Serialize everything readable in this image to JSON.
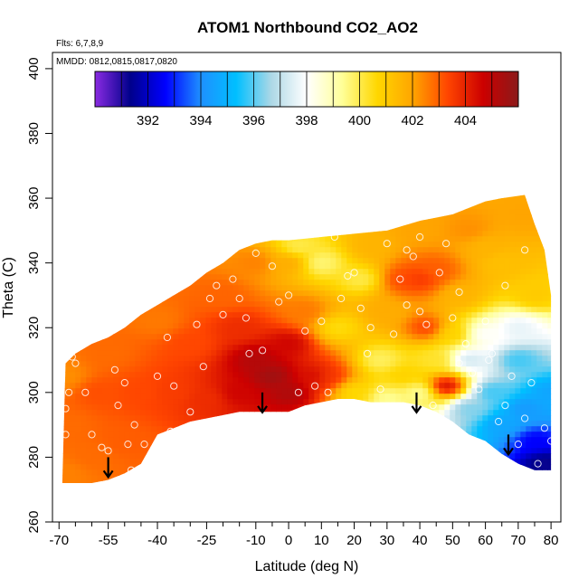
{
  "chart_data": {
    "type": "heatmap",
    "title": "ATOM1 Northbound CO2_AO2",
    "flights_note": "Flts: 6,7,8,9",
    "dates_note": "MMDD: 0812,0815,0817,0820",
    "xlabel": "Latitude (deg N)",
    "ylabel": "Theta (C)",
    "xlim": [
      -72,
      83
    ],
    "ylim": [
      260,
      405
    ],
    "x_ticks": [
      -70,
      -55,
      -40,
      -25,
      -10,
      0,
      10,
      20,
      30,
      40,
      50,
      60,
      70,
      80
    ],
    "x_minor_ticks": [
      -65,
      -60,
      -50,
      -45,
      -35,
      -30,
      -20,
      -15,
      -5,
      5,
      15,
      25,
      35,
      45,
      55,
      65,
      75
    ],
    "y_ticks": [
      260,
      280,
      300,
      320,
      340,
      360,
      380,
      400
    ],
    "colorbar": {
      "min": 390.0,
      "max": 406.0,
      "tick_values": [
        392,
        394,
        396,
        398,
        400,
        402,
        404
      ],
      "tick_labels": [
        "392",
        "394",
        "396",
        "398",
        "400",
        "402",
        "404"
      ],
      "colors": [
        "#8a2be2",
        "#00008b",
        "#0000ff",
        "#1e90ff",
        "#00bfff",
        "#add8e6",
        "#ffffff",
        "#ffff99",
        "#ffd700",
        "#ffa500",
        "#ff4500",
        "#cc0000",
        "#8b1a1a"
      ]
    },
    "upper_boundary": [
      [
        -68,
        309
      ],
      [
        -65,
        312
      ],
      [
        -60,
        315
      ],
      [
        -55,
        317
      ],
      [
        -50,
        320
      ],
      [
        -45,
        324
      ],
      [
        -40,
        327
      ],
      [
        -35,
        330
      ],
      [
        -30,
        333
      ],
      [
        -25,
        337
      ],
      [
        -20,
        340
      ],
      [
        -15,
        344
      ],
      [
        -10,
        346
      ],
      [
        -5,
        347
      ],
      [
        0,
        347
      ],
      [
        10,
        348
      ],
      [
        20,
        349
      ],
      [
        30,
        350
      ],
      [
        40,
        353
      ],
      [
        50,
        355
      ],
      [
        55,
        357
      ],
      [
        60,
        359
      ],
      [
        65,
        360
      ],
      [
        72,
        361
      ],
      [
        75,
        352
      ],
      [
        78,
        344
      ],
      [
        80,
        330
      ],
      [
        80,
        320
      ],
      [
        80,
        310
      ]
    ],
    "lower_boundary": [
      [
        80,
        276
      ],
      [
        75,
        276
      ],
      [
        70,
        278
      ],
      [
        65,
        281
      ],
      [
        60,
        285
      ],
      [
        55,
        287
      ],
      [
        50,
        291
      ],
      [
        45,
        294
      ],
      [
        40,
        296
      ],
      [
        35,
        297
      ],
      [
        30,
        297
      ],
      [
        25,
        297
      ],
      [
        20,
        298
      ],
      [
        15,
        298
      ],
      [
        10,
        297
      ],
      [
        5,
        296
      ],
      [
        0,
        294
      ],
      [
        -5,
        294
      ],
      [
        -10,
        294
      ],
      [
        -15,
        294
      ],
      [
        -20,
        293
      ],
      [
        -25,
        292
      ],
      [
        -30,
        291
      ],
      [
        -35,
        289
      ],
      [
        -40,
        287
      ],
      [
        -45,
        278
      ],
      [
        -50,
        275
      ],
      [
        -55,
        273
      ],
      [
        -60,
        272
      ],
      [
        -65,
        272
      ],
      [
        -69,
        272
      ]
    ],
    "field_anchors": [
      {
        "lat": -68,
        "theta": 275,
        "co2": 402.5
      },
      {
        "lat": -68,
        "theta": 290,
        "co2": 402.8
      },
      {
        "lat": -68,
        "theta": 305,
        "co2": 402.3
      },
      {
        "lat": -60,
        "theta": 280,
        "co2": 402.8
      },
      {
        "lat": -58,
        "theta": 300,
        "co2": 403.2
      },
      {
        "lat": -55,
        "theta": 312,
        "co2": 402.8
      },
      {
        "lat": -50,
        "theta": 285,
        "co2": 403.0
      },
      {
        "lat": -45,
        "theta": 300,
        "co2": 403.3
      },
      {
        "lat": -40,
        "theta": 322,
        "co2": 402.6
      },
      {
        "lat": -35,
        "theta": 300,
        "co2": 403.5
      },
      {
        "lat": -30,
        "theta": 315,
        "co2": 403.3
      },
      {
        "lat": -25,
        "theta": 298,
        "co2": 403.8
      },
      {
        "lat": -20,
        "theta": 330,
        "co2": 402.9
      },
      {
        "lat": -15,
        "theta": 320,
        "co2": 403.8
      },
      {
        "lat": -15,
        "theta": 300,
        "co2": 404.6
      },
      {
        "lat": -10,
        "theta": 310,
        "co2": 405.2
      },
      {
        "lat": -10,
        "theta": 340,
        "co2": 402.5
      },
      {
        "lat": -5,
        "theta": 305,
        "co2": 405.6
      },
      {
        "lat": 0,
        "theta": 300,
        "co2": 405.3
      },
      {
        "lat": 0,
        "theta": 315,
        "co2": 404.6
      },
      {
        "lat": 0,
        "theta": 340,
        "co2": 401.8
      },
      {
        "lat": 5,
        "theta": 325,
        "co2": 402.6
      },
      {
        "lat": 8,
        "theta": 305,
        "co2": 404.5
      },
      {
        "lat": 3,
        "theta": 345,
        "co2": 400.0
      },
      {
        "lat": 12,
        "theta": 305,
        "co2": 403.6
      },
      {
        "lat": 15,
        "theta": 320,
        "co2": 400.5
      },
      {
        "lat": 10,
        "theta": 340,
        "co2": 399.6
      },
      {
        "lat": 20,
        "theta": 300,
        "co2": 400.6
      },
      {
        "lat": 22,
        "theta": 335,
        "co2": 400.0
      },
      {
        "lat": 25,
        "theta": 345,
        "co2": 401.6
      },
      {
        "lat": 28,
        "theta": 310,
        "co2": 399.8
      },
      {
        "lat": 30,
        "theta": 298,
        "co2": 399.3
      },
      {
        "lat": 30,
        "theta": 325,
        "co2": 401.8
      },
      {
        "lat": 35,
        "theta": 305,
        "co2": 400.8
      },
      {
        "lat": 35,
        "theta": 335,
        "co2": 403.3
      },
      {
        "lat": 40,
        "theta": 335,
        "co2": 403.6
      },
      {
        "lat": 42,
        "theta": 320,
        "co2": 403.4
      },
      {
        "lat": 45,
        "theta": 338,
        "co2": 403.0
      },
      {
        "lat": 40,
        "theta": 300,
        "co2": 399.3
      },
      {
        "lat": 40,
        "theta": 350,
        "co2": 402.0
      },
      {
        "lat": 48,
        "theta": 302,
        "co2": 404.6
      },
      {
        "lat": 52,
        "theta": 330,
        "co2": 401.6
      },
      {
        "lat": 50,
        "theta": 318,
        "co2": 400.8
      },
      {
        "lat": 45,
        "theta": 310,
        "co2": 400.3
      },
      {
        "lat": 55,
        "theta": 310,
        "co2": 397.2
      },
      {
        "lat": 55,
        "theta": 295,
        "co2": 396.3
      },
      {
        "lat": 60,
        "theta": 318,
        "co2": 398.0
      },
      {
        "lat": 62,
        "theta": 300,
        "co2": 395.8
      },
      {
        "lat": 65,
        "theta": 340,
        "co2": 401.3
      },
      {
        "lat": 65,
        "theta": 290,
        "co2": 394.6
      },
      {
        "lat": 70,
        "theta": 310,
        "co2": 395.8
      },
      {
        "lat": 72,
        "theta": 295,
        "co2": 394.3
      },
      {
        "lat": 75,
        "theta": 285,
        "co2": 392.6
      },
      {
        "lat": 75,
        "theta": 330,
        "co2": 401.0
      },
      {
        "lat": 78,
        "theta": 278,
        "co2": 391.2
      },
      {
        "lat": 80,
        "theta": 300,
        "co2": 394.6
      },
      {
        "lat": 55,
        "theta": 350,
        "co2": 402.3
      },
      {
        "lat": 72,
        "theta": 355,
        "co2": 402.0
      },
      {
        "lat": 60,
        "theta": 345,
        "co2": 401.6
      },
      {
        "lat": 70,
        "theta": 320,
        "co2": 397.6
      }
    ],
    "samples": [
      [
        -68,
        295
      ],
      [
        -68,
        287
      ],
      [
        -67,
        300
      ],
      [
        -66,
        311
      ],
      [
        -65,
        309
      ],
      [
        -62,
        300
      ],
      [
        -60,
        287
      ],
      [
        -57,
        283
      ],
      [
        -55,
        282
      ],
      [
        -53,
        307
      ],
      [
        -52,
        296
      ],
      [
        -50,
        303
      ],
      [
        -49,
        284
      ],
      [
        -48,
        276
      ],
      [
        -47,
        290
      ],
      [
        -44,
        284
      ],
      [
        -40,
        305
      ],
      [
        -37,
        317
      ],
      [
        -36,
        288
      ],
      [
        -35,
        302
      ],
      [
        -30,
        294
      ],
      [
        -28,
        321
      ],
      [
        -26,
        308
      ],
      [
        -24,
        329
      ],
      [
        -22,
        333
      ],
      [
        -20,
        324
      ],
      [
        -17,
        335
      ],
      [
        -15,
        329
      ],
      [
        -13,
        323
      ],
      [
        -12,
        312
      ],
      [
        -10,
        343
      ],
      [
        -8,
        313
      ],
      [
        -5,
        339
      ],
      [
        -3,
        328
      ],
      [
        0,
        330
      ],
      [
        3,
        300
      ],
      [
        5,
        319
      ],
      [
        8,
        302
      ],
      [
        10,
        322
      ],
      [
        12,
        300
      ],
      [
        14,
        348
      ],
      [
        16,
        329
      ],
      [
        18,
        336
      ],
      [
        20,
        337
      ],
      [
        22,
        326
      ],
      [
        24,
        312
      ],
      [
        25,
        320
      ],
      [
        28,
        301
      ],
      [
        30,
        346
      ],
      [
        32,
        318
      ],
      [
        34,
        335
      ],
      [
        36,
        327
      ],
      [
        38,
        342
      ],
      [
        40,
        325
      ],
      [
        42,
        321
      ],
      [
        44,
        296
      ],
      [
        46,
        337
      ],
      [
        48,
        346
      ],
      [
        50,
        323
      ],
      [
        52,
        331
      ],
      [
        54,
        315
      ],
      [
        56,
        306
      ],
      [
        58,
        301
      ],
      [
        60,
        322
      ],
      [
        62,
        312
      ],
      [
        64,
        291
      ],
      [
        66,
        296
      ],
      [
        68,
        305
      ],
      [
        70,
        284
      ],
      [
        72,
        292
      ],
      [
        74,
        303
      ],
      [
        76,
        278
      ],
      [
        78,
        289
      ],
      [
        80,
        285
      ],
      [
        72,
        344
      ],
      [
        66,
        333
      ],
      [
        61,
        310
      ],
      [
        40,
        348
      ],
      [
        36,
        344
      ],
      [
        52,
        309
      ]
    ],
    "arrows": [
      {
        "lat": -55,
        "theta": 280
      },
      {
        "lat": -8,
        "theta": 300
      },
      {
        "lat": 39,
        "theta": 300
      },
      {
        "lat": 67,
        "theta": 287
      }
    ]
  }
}
